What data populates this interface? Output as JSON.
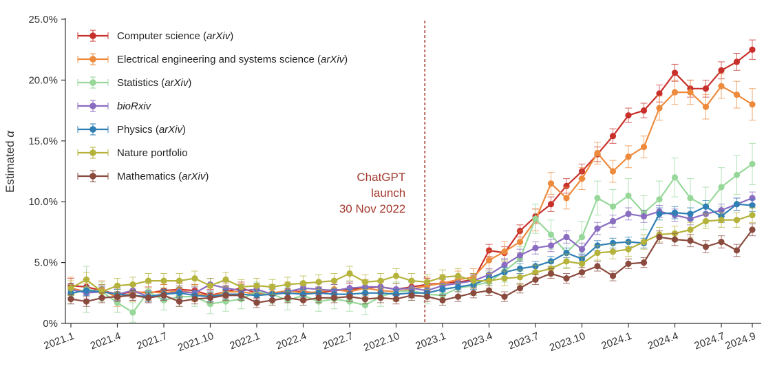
{
  "chart_data": {
    "type": "line",
    "title": "",
    "xlabel": "",
    "ylabel": "Estimated α",
    "ylabel_prefix": "Estimated ",
    "ylabel_symbol": "α",
    "ylim": [
      0,
      25
    ],
    "yticks": [
      "0%",
      "5.0%",
      "10.0%",
      "15.0%",
      "20.0%",
      "25.0%"
    ],
    "xtick_labels": [
      "2021.1",
      "2021.4",
      "2021.7",
      "2021.10",
      "2022.1",
      "2022.4",
      "2022.7",
      "2022.10",
      "2023.1",
      "2023.4",
      "2023.7",
      "2023.10",
      "2024.1",
      "2024.4",
      "2024.7",
      "2024.9"
    ],
    "x": [
      "2021.1",
      "2021.2",
      "2021.3",
      "2021.4",
      "2021.5",
      "2021.6",
      "2021.7",
      "2021.8",
      "2021.9",
      "2021.10",
      "2021.11",
      "2021.12",
      "2022.1",
      "2022.2",
      "2022.3",
      "2022.4",
      "2022.5",
      "2022.6",
      "2022.7",
      "2022.8",
      "2022.9",
      "2022.10",
      "2022.11",
      "2022.12",
      "2023.1",
      "2023.2",
      "2023.3",
      "2023.4",
      "2023.5",
      "2023.6",
      "2023.7",
      "2023.8",
      "2023.9",
      "2023.10",
      "2023.11",
      "2023.12",
      "2024.1",
      "2024.2",
      "2024.3",
      "2024.4",
      "2024.5",
      "2024.6",
      "2024.7",
      "2024.8",
      "2024.9"
    ],
    "grid": false,
    "legend_position": "top-left",
    "annotation": {
      "lines": [
        "ChatGPT",
        "launch",
        "30 Nov 2022"
      ],
      "x": "2022.12",
      "style": "dashed vertical line",
      "color": "#a33a2e"
    },
    "series": [
      {
        "name": "Computer science (arXiv)",
        "name_main": "Computer science (",
        "name_italic": "arXiv",
        "name_tail": ")",
        "color": "#c8312b",
        "values": [
          3.1,
          3.0,
          2.7,
          2.4,
          2.6,
          2.5,
          2.7,
          2.8,
          2.7,
          2.3,
          2.6,
          2.9,
          2.5,
          2.4,
          2.7,
          2.6,
          2.5,
          2.7,
          2.8,
          2.9,
          3.0,
          2.8,
          3.0,
          3.2,
          3.3,
          3.4,
          3.6,
          6.0,
          5.8,
          7.6,
          8.8,
          9.8,
          11.3,
          12.5,
          13.9,
          15.4,
          17.1,
          17.5,
          18.9,
          20.6,
          19.3,
          19.3,
          20.8,
          21.5,
          22.5
        ],
        "errors": [
          0.6,
          0.6,
          0.5,
          0.5,
          0.5,
          0.5,
          0.5,
          0.5,
          0.5,
          0.5,
          0.5,
          0.5,
          0.5,
          0.5,
          0.5,
          0.5,
          0.5,
          0.5,
          0.5,
          0.5,
          0.5,
          0.5,
          0.5,
          0.5,
          0.5,
          0.5,
          0.5,
          0.5,
          0.5,
          0.5,
          0.6,
          0.6,
          0.6,
          0.6,
          0.6,
          0.6,
          0.6,
          0.6,
          0.7,
          0.7,
          0.7,
          0.7,
          0.7,
          0.7,
          0.8
        ]
      },
      {
        "name": "Electrical engineering and systems science (arXiv)",
        "name_main": "Electrical engineering and systems science (",
        "name_italic": "arXiv",
        "name_tail": ")",
        "color": "#ee8a3c",
        "values": [
          2.9,
          2.6,
          2.8,
          2.1,
          2.5,
          2.6,
          2.5,
          2.7,
          2.5,
          2.2,
          2.6,
          2.6,
          2.4,
          2.5,
          2.7,
          2.5,
          2.6,
          2.8,
          2.6,
          2.9,
          2.7,
          2.6,
          2.8,
          3.1,
          3.3,
          3.6,
          3.8,
          5.2,
          5.9,
          6.7,
          8.5,
          11.5,
          10.3,
          11.9,
          14.0,
          12.5,
          13.7,
          14.5,
          17.7,
          19.0,
          19.0,
          17.8,
          19.5,
          18.8,
          18.0
        ],
        "errors": [
          0.9,
          0.7,
          0.7,
          0.7,
          0.7,
          0.7,
          0.7,
          0.7,
          0.7,
          0.7,
          0.7,
          0.7,
          0.7,
          0.7,
          0.7,
          0.7,
          0.7,
          0.7,
          0.7,
          0.7,
          0.7,
          0.7,
          0.7,
          0.7,
          0.7,
          0.7,
          0.7,
          0.8,
          0.8,
          0.9,
          0.9,
          0.9,
          0.9,
          0.9,
          0.9,
          0.9,
          0.9,
          0.9,
          1.0,
          1.0,
          1.0,
          1.0,
          1.0,
          1.1,
          1.3
        ]
      },
      {
        "name": "Statistics (arXiv)",
        "name_main": "Statistics (",
        "name_italic": "arXiv",
        "name_tail": ")",
        "color": "#97d89a",
        "values": [
          2.4,
          2.8,
          2.6,
          1.7,
          0.9,
          2.6,
          1.9,
          2.2,
          2.2,
          1.6,
          1.8,
          2.0,
          2.6,
          2.4,
          1.9,
          2.3,
          1.8,
          2.0,
          1.8,
          1.5,
          2.2,
          2.6,
          2.7,
          2.4,
          2.3,
          2.9,
          3.1,
          3.4,
          4.3,
          5.3,
          8.6,
          7.3,
          5.8,
          7.1,
          10.3,
          9.6,
          10.5,
          9.1,
          10.2,
          12.0,
          10.3,
          9.6,
          11.2,
          12.2,
          13.1
        ],
        "errors": [
          0.8,
          1.9,
          0.8,
          0.8,
          0.8,
          0.8,
          0.8,
          0.8,
          0.8,
          0.8,
          0.8,
          0.8,
          0.8,
          0.8,
          0.8,
          0.8,
          0.8,
          0.8,
          0.8,
          0.8,
          0.8,
          0.8,
          0.8,
          0.8,
          0.8,
          0.8,
          0.8,
          0.9,
          0.9,
          1.0,
          1.2,
          1.2,
          1.2,
          1.3,
          1.4,
          1.4,
          1.4,
          1.4,
          1.5,
          1.6,
          1.6,
          1.6,
          1.6,
          1.6,
          1.7
        ]
      },
      {
        "name": "bioRxiv",
        "name_main": "",
        "name_italic": "bioRxiv",
        "name_tail": "",
        "color": "#8a6cc1",
        "values": [
          2.8,
          2.5,
          2.6,
          2.4,
          2.7,
          2.2,
          2.4,
          2.6,
          2.5,
          3.2,
          2.9,
          2.7,
          2.8,
          2.4,
          2.6,
          2.9,
          2.8,
          2.7,
          2.9,
          3.0,
          3.0,
          2.8,
          2.9,
          2.7,
          3.1,
          3.3,
          3.5,
          4.0,
          4.8,
          5.6,
          6.2,
          6.4,
          7.1,
          6.1,
          7.8,
          8.4,
          9.0,
          8.8,
          9.2,
          8.9,
          8.6,
          9.0,
          9.3,
          9.8,
          10.3
        ],
        "errors": [
          0.5,
          0.5,
          0.5,
          0.5,
          0.5,
          0.5,
          0.5,
          0.5,
          0.5,
          0.5,
          0.5,
          0.5,
          0.5,
          0.5,
          0.5,
          0.5,
          0.5,
          0.5,
          0.5,
          0.5,
          0.5,
          0.5,
          0.5,
          0.5,
          0.5,
          0.5,
          0.5,
          0.5,
          0.5,
          0.5,
          0.5,
          0.5,
          0.5,
          0.5,
          0.5,
          0.5,
          0.5,
          0.5,
          0.5,
          0.5,
          0.5,
          0.5,
          0.5,
          0.5,
          0.5
        ]
      },
      {
        "name": "Physics (arXiv)",
        "name_main": "Physics (",
        "name_italic": "arXiv",
        "name_tail": ")",
        "color": "#2f7fb5",
        "values": [
          2.5,
          2.7,
          2.6,
          2.4,
          2.3,
          2.2,
          2.4,
          2.5,
          2.3,
          2.2,
          2.4,
          2.4,
          2.3,
          2.4,
          2.5,
          2.4,
          2.5,
          2.4,
          2.4,
          2.5,
          2.5,
          2.4,
          2.5,
          2.5,
          2.8,
          3.0,
          3.2,
          3.7,
          4.2,
          4.5,
          4.7,
          5.1,
          5.8,
          5.3,
          6.4,
          6.6,
          6.7,
          6.6,
          9.0,
          9.1,
          9.0,
          9.6,
          8.8,
          9.8,
          9.7
        ],
        "errors": [
          0.4,
          0.4,
          0.4,
          0.4,
          0.4,
          0.4,
          0.4,
          0.4,
          0.4,
          0.4,
          0.4,
          0.4,
          0.4,
          0.4,
          0.4,
          0.4,
          0.4,
          0.4,
          0.4,
          0.4,
          0.4,
          0.4,
          0.4,
          0.4,
          0.4,
          0.4,
          0.4,
          0.4,
          0.4,
          0.4,
          0.4,
          0.4,
          0.4,
          0.4,
          0.4,
          0.4,
          0.4,
          0.4,
          0.5,
          0.5,
          0.5,
          0.5,
          0.5,
          0.5,
          0.5
        ]
      },
      {
        "name": "Nature portfolio",
        "name_main": "Nature portfolio",
        "name_italic": "",
        "name_tail": "",
        "color": "#b5b33c",
        "values": [
          2.9,
          3.6,
          2.6,
          3.1,
          3.2,
          3.5,
          3.5,
          3.5,
          3.7,
          3.1,
          3.6,
          3.0,
          3.1,
          3.0,
          3.2,
          3.3,
          3.4,
          3.5,
          4.1,
          3.4,
          3.5,
          3.9,
          3.5,
          3.4,
          3.8,
          3.9,
          3.5,
          3.5,
          3.7,
          3.8,
          4.2,
          4.5,
          5.1,
          4.9,
          5.8,
          5.9,
          6.1,
          6.7,
          7.3,
          7.4,
          7.7,
          8.4,
          8.5,
          8.5,
          8.9
        ],
        "errors": [
          0.6,
          0.6,
          0.6,
          0.6,
          0.6,
          0.6,
          0.6,
          0.6,
          0.6,
          0.6,
          0.6,
          0.6,
          0.6,
          0.6,
          0.6,
          0.6,
          0.6,
          0.6,
          0.6,
          0.6,
          0.6,
          0.6,
          0.6,
          0.6,
          0.6,
          0.6,
          0.6,
          0.6,
          0.6,
          0.6,
          0.6,
          0.6,
          0.6,
          0.6,
          0.6,
          0.6,
          0.6,
          0.6,
          0.6,
          0.6,
          0.6,
          0.6,
          0.6,
          0.6,
          0.6
        ]
      },
      {
        "name": "Mathematics (arXiv)",
        "name_main": "Mathematics (",
        "name_italic": "arXiv",
        "name_tail": ")",
        "color": "#8a4a3e",
        "values": [
          2.0,
          1.8,
          2.1,
          2.2,
          2.3,
          2.1,
          2.3,
          1.8,
          2.0,
          2.1,
          2.3,
          2.3,
          1.7,
          1.9,
          2.1,
          1.9,
          2.1,
          2.1,
          2.2,
          2.0,
          2.1,
          2.0,
          2.3,
          2.2,
          1.9,
          2.2,
          2.5,
          2.7,
          2.2,
          2.9,
          3.6,
          4.1,
          3.7,
          4.2,
          4.7,
          3.9,
          4.9,
          5.0,
          7.1,
          6.9,
          6.8,
          6.3,
          6.7,
          6.0,
          7.7
        ],
        "errors": [
          0.4,
          0.4,
          0.4,
          0.4,
          0.4,
          0.4,
          0.4,
          0.4,
          0.4,
          0.4,
          0.4,
          0.4,
          0.4,
          0.4,
          0.4,
          0.4,
          0.4,
          0.4,
          0.4,
          0.4,
          0.4,
          0.4,
          0.4,
          0.4,
          0.4,
          0.4,
          0.4,
          0.4,
          0.4,
          0.4,
          0.4,
          0.4,
          0.4,
          0.4,
          0.4,
          0.4,
          0.4,
          0.4,
          0.5,
          0.5,
          0.5,
          0.5,
          0.5,
          0.5,
          0.5
        ]
      }
    ]
  }
}
